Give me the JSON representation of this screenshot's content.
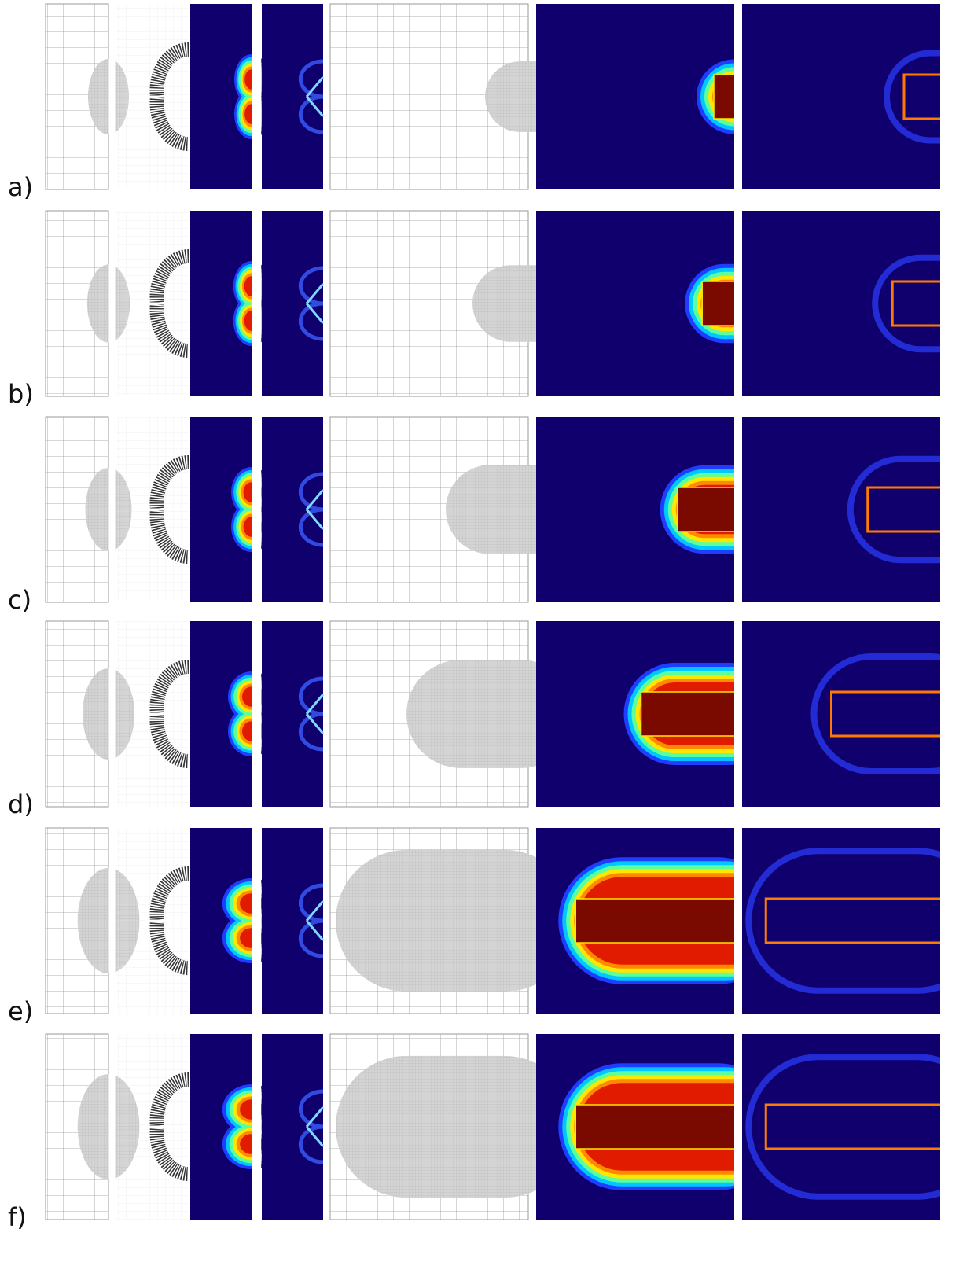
{
  "rows": [
    {
      "label": "a)"
    },
    {
      "label": "b)"
    },
    {
      "label": "c)"
    },
    {
      "label": "d)"
    },
    {
      "label": "e)"
    },
    {
      "label": "f)"
    }
  ]
}
